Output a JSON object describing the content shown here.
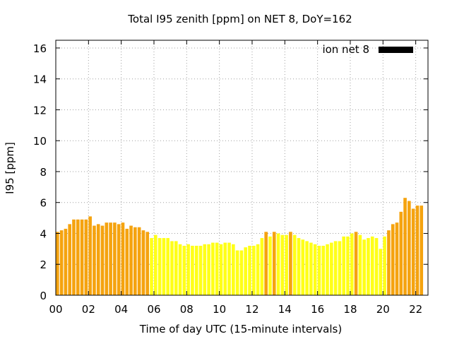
{
  "chart_data": {
    "type": "bar",
    "title": "Total I95 zenith [ppm] on NET 8, DoY=162",
    "xlabel": "Time of day UTC (15-minute intervals)",
    "ylabel": "I95 [ppm]",
    "xlim": [
      0,
      22.75
    ],
    "ylim": [
      0,
      16.5
    ],
    "x_ticks": [
      0,
      2,
      4,
      6,
      8,
      10,
      12,
      14,
      16,
      18,
      20,
      22
    ],
    "x_tick_labels": [
      "00",
      "02",
      "04",
      "06",
      "08",
      "10",
      "12",
      "14",
      "16",
      "18",
      "20",
      "22"
    ],
    "y_ticks": [
      0,
      2,
      4,
      6,
      8,
      10,
      12,
      14,
      16
    ],
    "y_tick_labels": [
      "0",
      "2",
      "4",
      "6",
      "8",
      "10",
      "12",
      "14",
      "16"
    ],
    "grid": true,
    "legend": {
      "label": "ion net 8",
      "placement": "top-right",
      "color": "#000000"
    },
    "interval_hours": 0.25,
    "colors": {
      "high": "#f5a30f",
      "low": "#ffff18"
    },
    "series": [
      {
        "values": [
          4.1,
          4.2,
          4.3,
          4.6,
          4.9,
          4.9,
          4.9,
          4.9,
          5.1,
          4.5,
          4.6,
          4.5,
          4.7,
          4.7,
          4.7,
          4.6,
          4.7,
          4.3,
          4.5,
          4.4,
          4.4,
          4.2,
          4.1,
          3.7,
          3.9,
          3.7,
          3.7,
          3.7,
          3.5,
          3.5,
          3.3,
          3.2,
          3.3,
          3.2,
          3.2,
          3.2,
          3.3,
          3.3,
          3.4,
          3.4,
          3.3,
          3.4,
          3.4,
          3.3,
          2.9,
          2.9,
          3.1,
          3.2,
          3.2,
          3.3,
          3.7,
          4.1,
          3.8,
          4.1,
          4.0,
          3.9,
          3.9,
          4.1,
          3.9,
          3.7,
          3.6,
          3.5,
          3.4,
          3.3,
          3.2,
          3.2,
          3.3,
          3.4,
          3.5,
          3.5,
          3.8,
          3.8,
          4.0,
          4.1,
          3.9,
          3.6,
          3.7,
          3.8,
          3.7,
          3.0,
          3.8,
          4.2,
          4.6,
          4.7,
          5.4,
          6.3,
          6.1,
          5.6,
          5.8,
          5.8
        ],
        "category": [
          "high",
          "high",
          "high",
          "high",
          "high",
          "high",
          "high",
          "high",
          "high",
          "high",
          "high",
          "high",
          "high",
          "high",
          "high",
          "high",
          "high",
          "high",
          "high",
          "high",
          "high",
          "high",
          "high",
          "low",
          "low",
          "low",
          "low",
          "low",
          "low",
          "low",
          "low",
          "low",
          "low",
          "low",
          "low",
          "low",
          "low",
          "low",
          "low",
          "low",
          "low",
          "low",
          "low",
          "low",
          "low",
          "low",
          "low",
          "low",
          "low",
          "low",
          "low",
          "high",
          "low",
          "high",
          "low",
          "low",
          "low",
          "high",
          "low",
          "low",
          "low",
          "low",
          "low",
          "low",
          "low",
          "low",
          "low",
          "low",
          "low",
          "low",
          "low",
          "low",
          "low",
          "high",
          "low",
          "low",
          "low",
          "low",
          "low",
          "low",
          "low",
          "high",
          "high",
          "high",
          "high",
          "high",
          "high",
          "high",
          "high",
          "high"
        ]
      }
    ]
  }
}
